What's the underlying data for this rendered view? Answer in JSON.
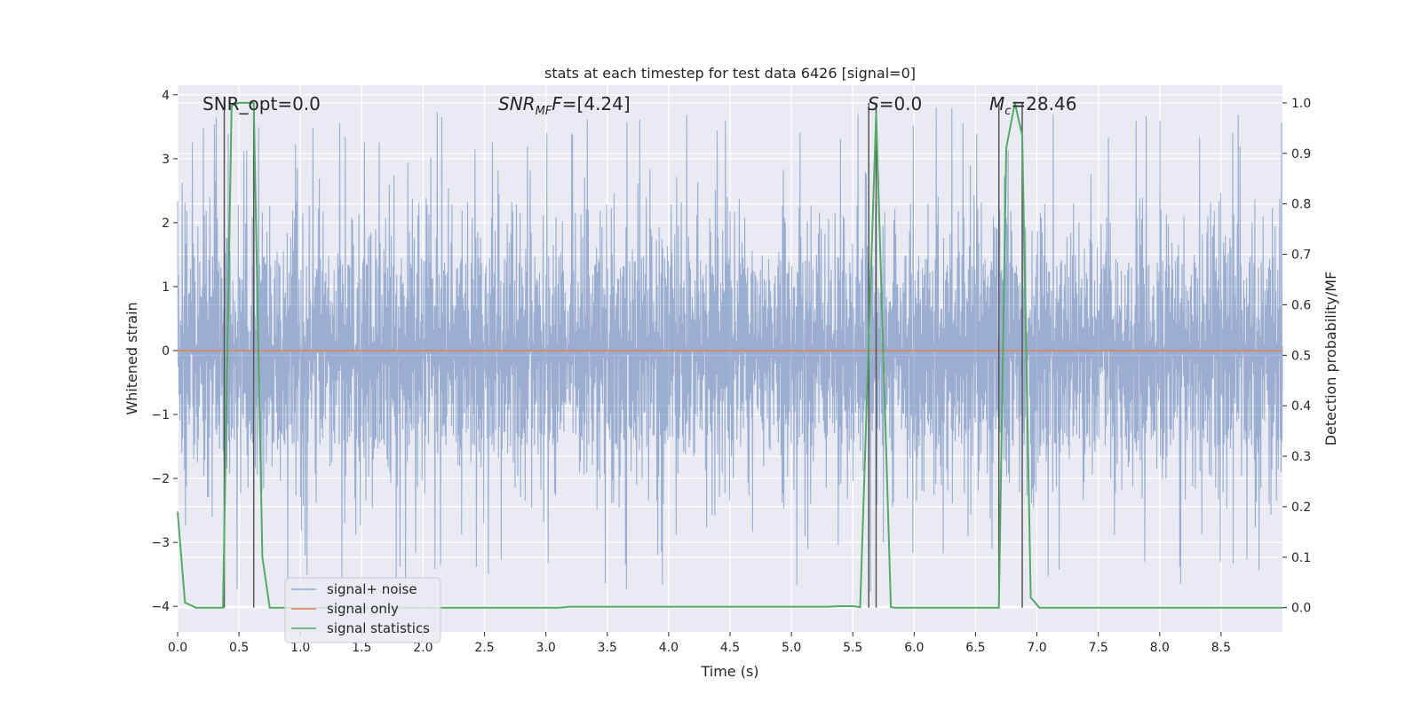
{
  "chart_data": {
    "type": "line",
    "title": "stats at each timestep for test data 6426 [signal=0]",
    "xlabel": "Time (s)",
    "ylabel": "Whitened strain",
    "y2label": "Detection probability/MF",
    "xlim": [
      0.0,
      9.0
    ],
    "ylim": [
      -4.4,
      4.15
    ],
    "y2lim": [
      -0.048,
      1.035
    ],
    "xticks": [
      "0.0",
      "0.5",
      "1.0",
      "1.5",
      "2.0",
      "2.5",
      "3.0",
      "3.5",
      "4.0",
      "4.5",
      "5.0",
      "5.5",
      "6.0",
      "6.5",
      "7.0",
      "7.5",
      "8.0",
      "8.5"
    ],
    "yticks": [
      "4",
      "3",
      "2",
      "1",
      "0",
      "−1",
      "−2",
      "−3",
      "−4"
    ],
    "y2ticks": [
      "1.0",
      "0.9",
      "0.8",
      "0.7",
      "0.6",
      "0.5",
      "0.4",
      "0.3",
      "0.2",
      "0.1",
      "0.0"
    ],
    "annotations": {
      "snr_opt": "SNR_opt=0.0",
      "snr_mf_main": "SNR",
      "snr_mf_sub": "MF",
      "snr_mf_value": "=[4.24]",
      "s_label": "S",
      "s_value": "=0.0",
      "mc_main": "M",
      "mc_sub": "c",
      "mc_value": "=28.46"
    },
    "legend": {
      "placement": "lower-left",
      "entries": [
        "signal+ noise",
        "signal only",
        "signal statistics"
      ]
    },
    "colors": {
      "noise": "#4c72b0",
      "signal": "#dd8452",
      "stats": "#55a868",
      "background": "#eaeaf2",
      "vline": "#555555"
    },
    "series": [
      {
        "name": "signal+ noise",
        "kind": "noise",
        "amplitude_envelope": [
          1.5,
          2.4,
          3.8
        ],
        "values_summary": "dense noise, roughly within −3.9 to 3.8"
      },
      {
        "name": "signal only",
        "kind": "line",
        "x": [
          0.0,
          9.0
        ],
        "y": [
          0.0,
          0.0
        ]
      },
      {
        "name": "signal statistics",
        "kind": "line",
        "axis": "right",
        "x": [
          0.0,
          0.06,
          0.15,
          0.37,
          0.44,
          0.5,
          0.62,
          0.69,
          0.75,
          3.1,
          3.2,
          5.3,
          5.4,
          5.5,
          5.56,
          5.69,
          5.81,
          5.85,
          6.69,
          6.75,
          6.82,
          6.88,
          6.95,
          7.02,
          9.0
        ],
        "y": [
          0.19,
          0.01,
          0.0,
          0.0,
          0.995,
          1.0,
          1.0,
          0.1,
          0.0,
          0.0,
          0.002,
          0.002,
          0.003,
          0.003,
          0.001,
          0.98,
          0.001,
          0.0,
          0.0,
          0.91,
          1.0,
          0.935,
          0.02,
          0.0,
          0.0
        ]
      }
    ],
    "vlines_x": [
      0.38,
      0.62,
      5.63,
      5.69,
      6.69,
      6.88
    ]
  }
}
